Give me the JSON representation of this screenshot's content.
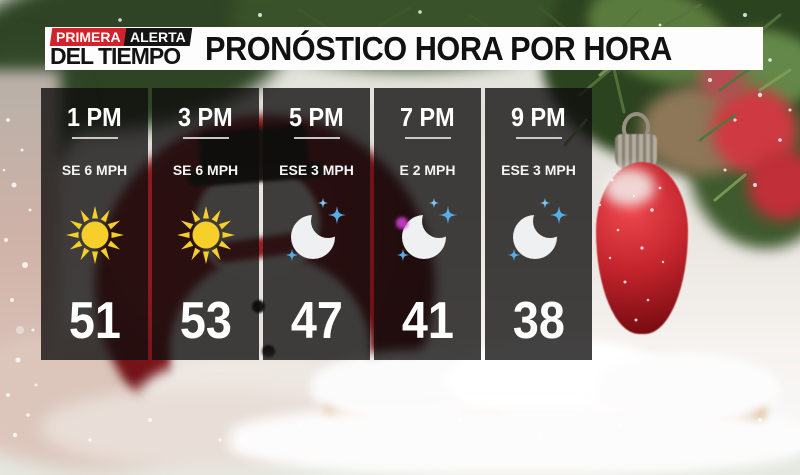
{
  "branding": {
    "primera": "PRIMERA",
    "alerta": "ALERTA",
    "del_tiempo": "DEL TIEMPO"
  },
  "header": {
    "title": "PRONÓSTICO HORA POR HORA"
  },
  "forecast": {
    "columns": [
      {
        "time": "1 PM",
        "wind": "SE 6 MPH",
        "icon": "sun",
        "temp": "51"
      },
      {
        "time": "3 PM",
        "wind": "SE 6 MPH",
        "icon": "sun",
        "temp": "53"
      },
      {
        "time": "5 PM",
        "wind": "ESE 3 MPH",
        "icon": "moon",
        "temp": "47"
      },
      {
        "time": "7 PM",
        "wind": "E 2 MPH",
        "icon": "moon",
        "temp": "41"
      },
      {
        "time": "9 PM",
        "wind": "ESE 3 MPH",
        "icon": "moon",
        "temp": "38"
      }
    ]
  },
  "colors": {
    "accent_red": "#d0232b",
    "sun_yellow": "#f7cf2a",
    "moon_white": "#eef0f1",
    "sparkle_blue": "#56aee6",
    "sparkle_light": "#7fc4ee",
    "panel_overlay": "rgba(14,13,13,0.78)"
  }
}
